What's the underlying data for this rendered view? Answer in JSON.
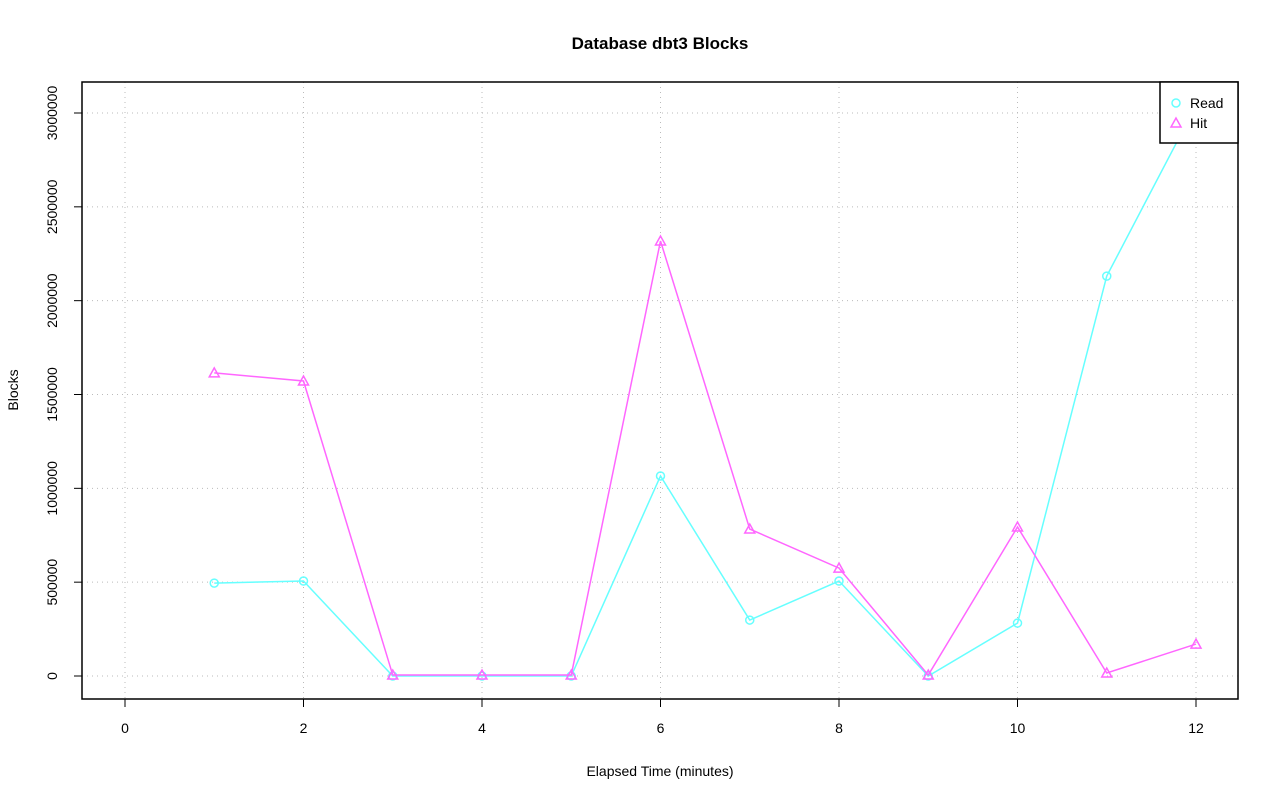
{
  "chart_data": {
    "type": "line",
    "title": "Database dbt3 Blocks",
    "xlabel": "Elapsed Time (minutes)",
    "ylabel": "Blocks",
    "xlim": [
      0,
      12
    ],
    "ylim": [
      0,
      3000000
    ],
    "xticks": [
      "0",
      "2",
      "4",
      "6",
      "8",
      "10",
      "12"
    ],
    "yticks": [
      "0",
      "500000",
      "1000000",
      "1500000",
      "2000000",
      "2500000",
      "3000000"
    ],
    "grid": true,
    "legend_position": "top-right",
    "x": [
      1,
      2,
      3,
      4,
      5,
      6,
      7,
      8,
      9,
      10,
      11,
      12
    ],
    "series": [
      {
        "name": "Read",
        "color": "#66ffff",
        "marker": "circle",
        "values": [
          495000,
          506000,
          0,
          0,
          0,
          1066000,
          298000,
          506000,
          0,
          282000,
          2131000,
          3040000
        ]
      },
      {
        "name": "Hit",
        "color": "#ff66ff",
        "marker": "triangle",
        "values": [
          1615000,
          1572000,
          5000,
          5000,
          5000,
          2318000,
          783000,
          575000,
          5000,
          794000,
          16000,
          170000
        ]
      }
    ]
  }
}
